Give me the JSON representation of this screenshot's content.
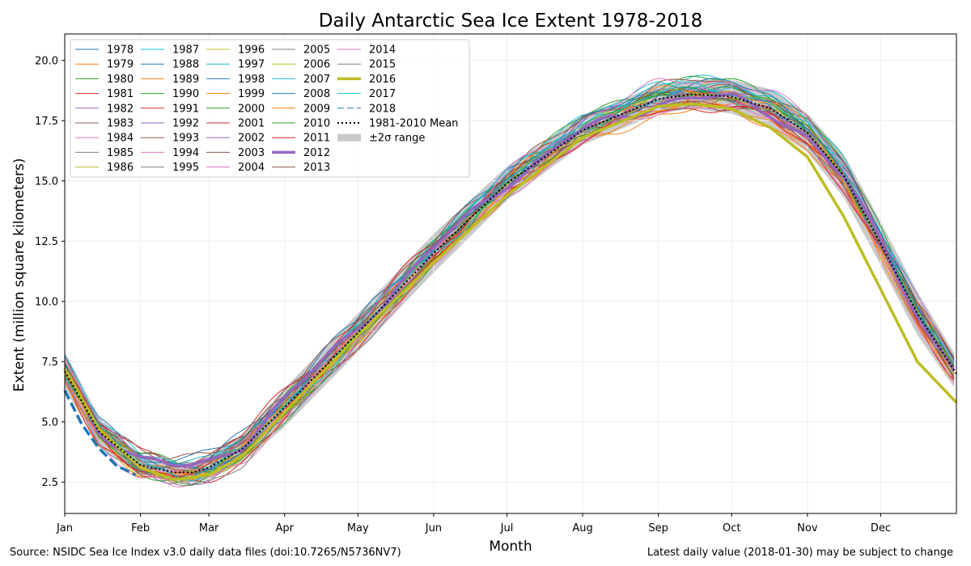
{
  "chart_data": {
    "type": "line",
    "title": "Daily Antarctic Sea Ice Extent 1978-2018",
    "xlabel": "Month",
    "ylabel": "Extent (million square kilometers)",
    "x_ticks": [
      "Jan",
      "Feb",
      "Mar",
      "Apr",
      "May",
      "Jun",
      "Jul",
      "Aug",
      "Sep",
      "Oct",
      "Nov",
      "Dec"
    ],
    "x_range_days": [
      1,
      366
    ],
    "y_ticks": [
      2.5,
      5.0,
      7.5,
      10.0,
      12.5,
      15.0,
      17.5,
      20.0
    ],
    "ylim": [
      1.2,
      21.1
    ],
    "grid": true,
    "legend_placement": "top-left",
    "mean": {
      "name": "1981-2010 Mean",
      "days": [
        1,
        15,
        32,
        46,
        53,
        60,
        74,
        91,
        121,
        152,
        182,
        213,
        244,
        258,
        274,
        290,
        305,
        320,
        335,
        350,
        366
      ],
      "values": [
        7.1,
        4.6,
        3.2,
        2.9,
        2.9,
        3.1,
        3.9,
        5.6,
        8.7,
        12.0,
        14.9,
        17.1,
        18.4,
        18.6,
        18.5,
        18.0,
        17.0,
        15.2,
        12.4,
        9.5,
        7.0
      ]
    },
    "range": {
      "name": "±2σ range",
      "days": [
        1,
        15,
        32,
        46,
        53,
        60,
        74,
        91,
        121,
        152,
        182,
        213,
        244,
        258,
        274,
        290,
        305,
        320,
        335,
        350,
        366
      ],
      "low": [
        6.4,
        4.0,
        2.8,
        2.5,
        2.5,
        2.6,
        3.3,
        4.8,
        7.9,
        11.2,
        14.2,
        16.5,
        17.8,
        18.0,
        17.8,
        17.2,
        16.2,
        14.3,
        11.5,
        8.6,
        6.3
      ],
      "high": [
        7.9,
        5.2,
        3.6,
        3.3,
        3.3,
        3.6,
        4.5,
        6.4,
        9.5,
        12.8,
        15.6,
        17.7,
        19.0,
        19.2,
        19.2,
        18.8,
        17.8,
        16.1,
        13.3,
        10.4,
        7.7
      ]
    },
    "series": [
      {
        "name": "1978",
        "color": "#1f77b4"
      },
      {
        "name": "1979",
        "color": "#ff7f0e"
      },
      {
        "name": "1980",
        "color": "#2ca02c"
      },
      {
        "name": "1981",
        "color": "#d62728"
      },
      {
        "name": "1982",
        "color": "#9467bd"
      },
      {
        "name": "1983",
        "color": "#8c564b"
      },
      {
        "name": "1984",
        "color": "#e377c2"
      },
      {
        "name": "1985",
        "color": "#7f7f7f"
      },
      {
        "name": "1986",
        "color": "#bcbd22"
      },
      {
        "name": "1987",
        "color": "#17becf"
      },
      {
        "name": "1988",
        "color": "#1f77b4"
      },
      {
        "name": "1989",
        "color": "#ff7f0e"
      },
      {
        "name": "1990",
        "color": "#2ca02c"
      },
      {
        "name": "1991",
        "color": "#d62728"
      },
      {
        "name": "1992",
        "color": "#9467bd"
      },
      {
        "name": "1993",
        "color": "#8c564b"
      },
      {
        "name": "1994",
        "color": "#e377c2"
      },
      {
        "name": "1995",
        "color": "#7f7f7f"
      },
      {
        "name": "1996",
        "color": "#bcbd22"
      },
      {
        "name": "1997",
        "color": "#17becf"
      },
      {
        "name": "1998",
        "color": "#1f77b4"
      },
      {
        "name": "1999",
        "color": "#ff7f0e"
      },
      {
        "name": "2000",
        "color": "#2ca02c"
      },
      {
        "name": "2001",
        "color": "#d62728"
      },
      {
        "name": "2002",
        "color": "#9467bd"
      },
      {
        "name": "2003",
        "color": "#8c564b"
      },
      {
        "name": "2004",
        "color": "#e377c2"
      },
      {
        "name": "2005",
        "color": "#7f7f7f"
      },
      {
        "name": "2006",
        "color": "#bcbd22"
      },
      {
        "name": "2007",
        "color": "#17becf"
      },
      {
        "name": "2008",
        "color": "#1f77b4"
      },
      {
        "name": "2009",
        "color": "#ff7f0e"
      },
      {
        "name": "2010",
        "color": "#2ca02c"
      },
      {
        "name": "2011",
        "color": "#d62728"
      },
      {
        "name": "2012",
        "color": "#9467bd",
        "highlight": true
      },
      {
        "name": "2013",
        "color": "#8c564b"
      },
      {
        "name": "2014",
        "color": "#e377c2"
      },
      {
        "name": "2015",
        "color": "#7f7f7f"
      },
      {
        "name": "2016",
        "color": "#bcbd22",
        "highlight": true,
        "days": [
          1,
          15,
          32,
          46,
          60,
          74,
          91,
          121,
          152,
          182,
          213,
          244,
          258,
          274,
          290,
          305,
          320,
          335,
          350,
          366
        ],
        "values": [
          7.2,
          4.7,
          3.1,
          2.6,
          2.8,
          3.6,
          5.4,
          8.6,
          11.6,
          14.4,
          16.8,
          18.1,
          18.2,
          18.0,
          17.2,
          16.0,
          13.5,
          10.5,
          7.5,
          5.8
        ]
      },
      {
        "name": "2017",
        "color": "#17becf"
      },
      {
        "name": "2018",
        "color": "#1f77b4",
        "style": "dashed",
        "days": [
          1,
          8,
          15,
          22,
          30
        ],
        "values": [
          6.3,
          4.9,
          3.9,
          3.2,
          2.8
        ]
      }
    ],
    "legend_entries": [
      "1981-2010 Mean",
      "±2σ range"
    ]
  },
  "footer": {
    "source": "Source: NSIDC Sea Ice Index v3.0 daily data files (doi:10.7265/N5736NV7)",
    "note": "Latest daily value (2018-01-30) may be subject to change"
  }
}
